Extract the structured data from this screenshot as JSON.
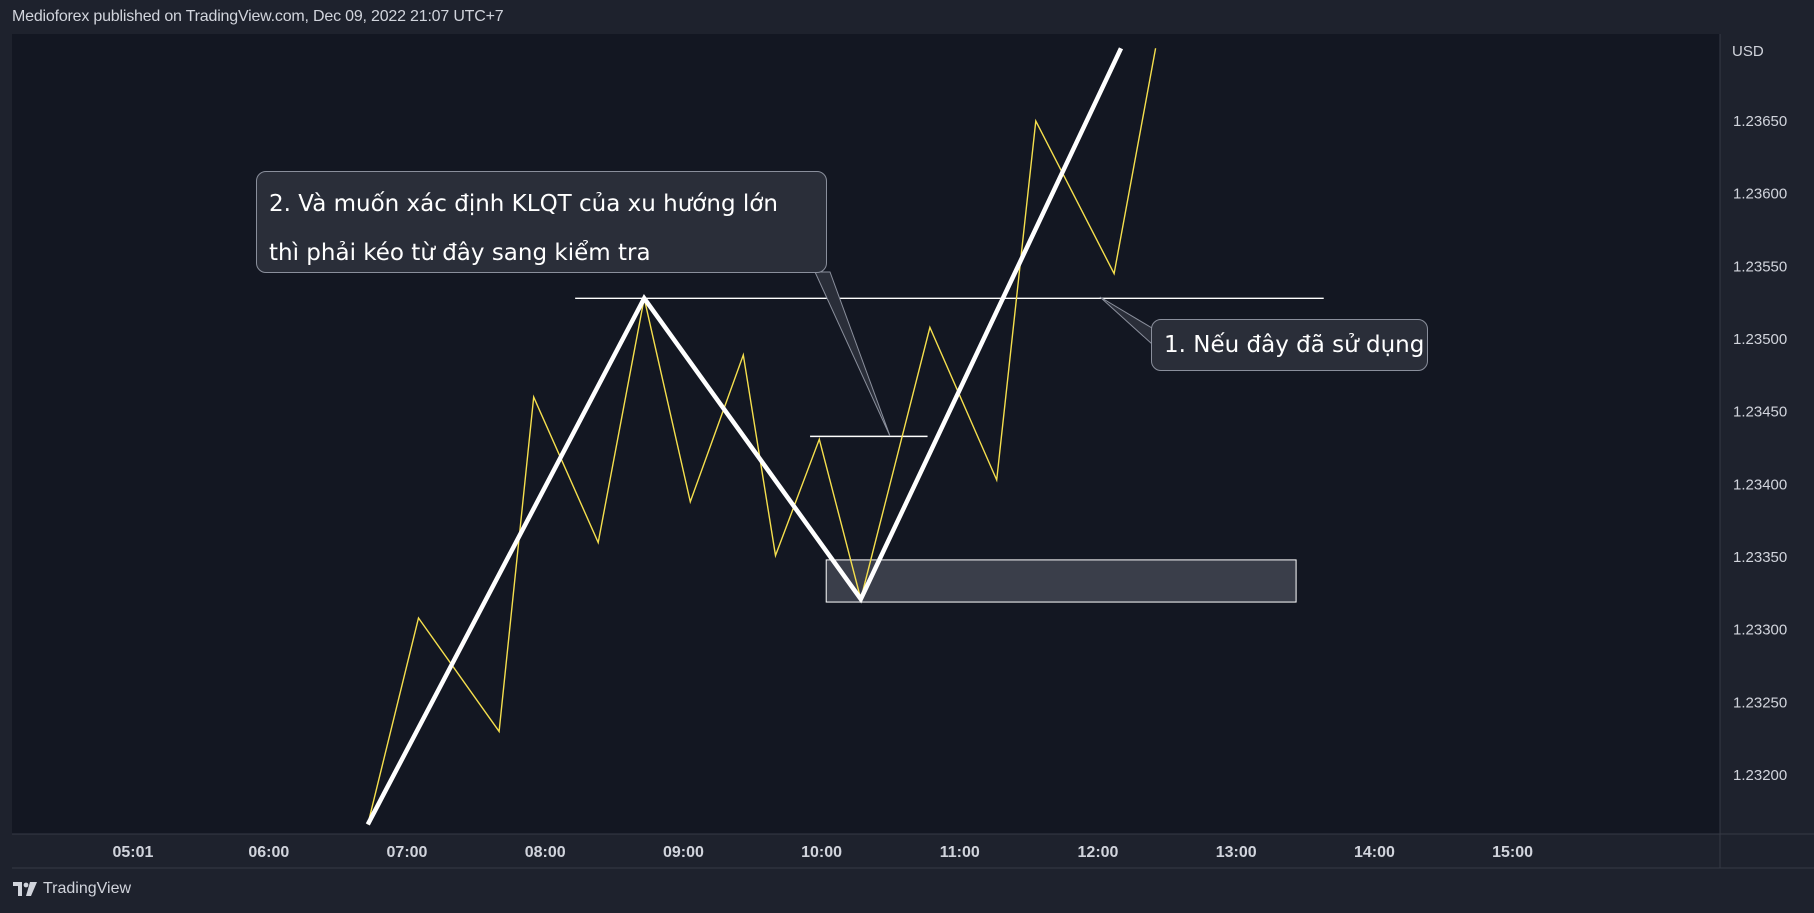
{
  "header": {
    "attribution": "Medioforex published on TradingView.com, Dec 09, 2022 21:07 UTC+7"
  },
  "footer": {
    "brand": "TradingView"
  },
  "colors": {
    "background": "#131722",
    "price_line": "#f5df4d",
    "swing_line": "#ffffff",
    "zone_fill": "#3a3e4a",
    "axis_text": "#d1d4dc"
  },
  "annotations": {
    "callout_2": "2. Và muốn xác định KLQT của xu hướng lớn thì phải kéo từ đây sang kiểm tra",
    "callout_1": "1. Nếu đây đã sử dụng"
  },
  "chart_data": {
    "type": "line",
    "currency": "USD",
    "x_tick_labels": [
      "05:01",
      "06:00",
      "07:00",
      "08:00",
      "09:00",
      "10:00",
      "11:00",
      "12:00",
      "13:00",
      "14:00",
      "15:00"
    ],
    "y_tick_labels": [
      "1.23650",
      "1.23600",
      "1.23550",
      "1.23500",
      "1.23450",
      "1.23400",
      "1.23350",
      "1.23300",
      "1.23250",
      "1.23200"
    ],
    "ylim": [
      1.2316,
      1.237
    ],
    "grid": false,
    "series": [
      {
        "style": "thin-yellow",
        "points": [
          [
            "06:43",
            1.23166
          ],
          [
            "07:05",
            1.23308
          ],
          [
            "07:40",
            1.2323
          ],
          [
            "07:55",
            1.2346
          ],
          [
            "08:23",
            1.2336
          ],
          [
            "08:43",
            1.23528
          ],
          [
            "09:03",
            1.23388
          ],
          [
            "09:26",
            1.23489
          ],
          [
            "09:40",
            1.23351
          ],
          [
            "09:59",
            1.23431
          ],
          [
            "10:17",
            1.23321
          ],
          [
            "10:47",
            1.23508
          ],
          [
            "11:16",
            1.23403
          ],
          [
            "11:33",
            1.2365
          ],
          [
            "12:07",
            1.23545
          ],
          [
            "12:25",
            1.237
          ]
        ]
      },
      {
        "style": "thick-white",
        "points": [
          [
            "06:43",
            1.23166
          ],
          [
            "08:43",
            1.23528
          ],
          [
            "10:17",
            1.23321
          ],
          [
            "12:10",
            1.237
          ]
        ]
      }
    ],
    "horizontal_lines": [
      {
        "from": "08:13",
        "to": "13:38",
        "y": 1.23528
      },
      {
        "from": "09:55",
        "to": "10:46",
        "y": 1.23433
      }
    ],
    "zone": {
      "from": "10:02",
      "to": "13:26",
      "y_top": 1.23348,
      "y_bottom": 1.23319
    }
  }
}
